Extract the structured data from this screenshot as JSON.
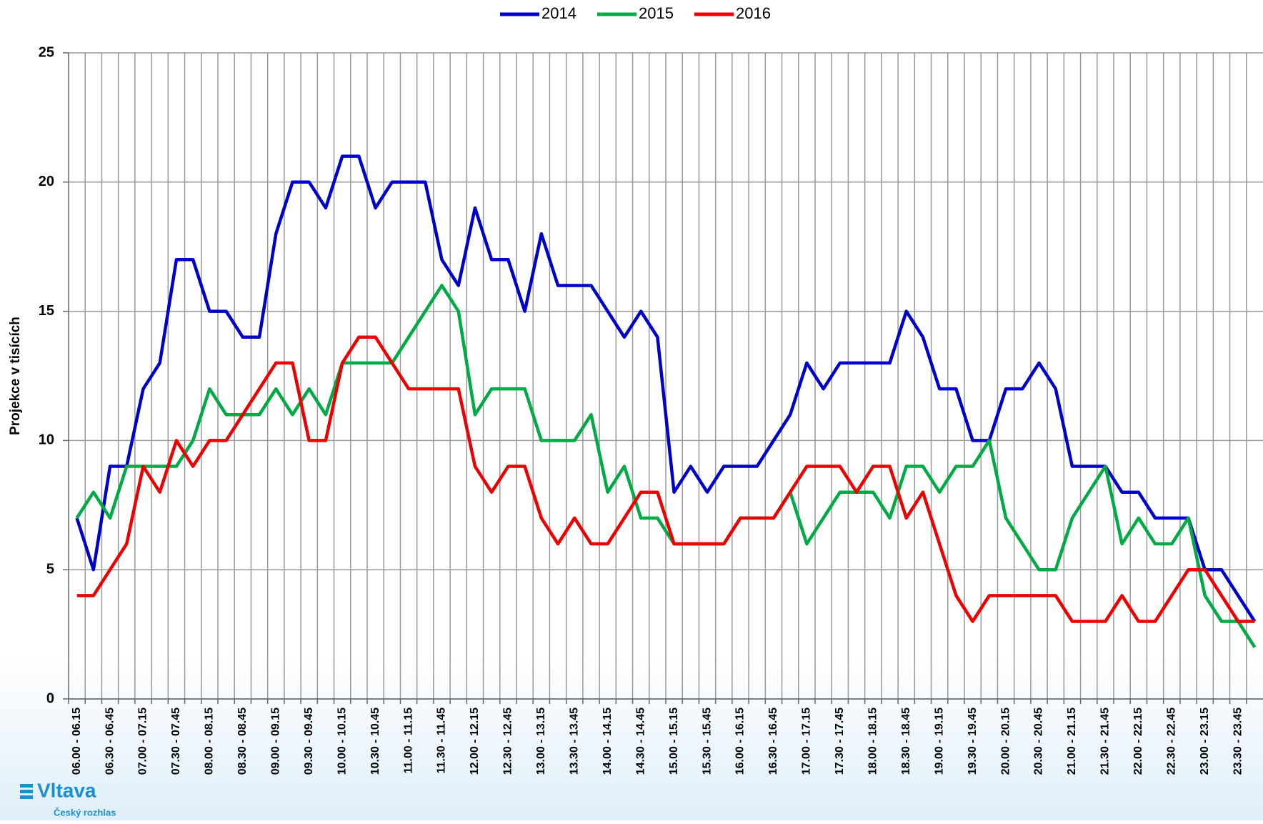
{
  "chart_data": {
    "type": "line",
    "y_label": "Projekce v tisících",
    "categories": [
      "06.00 - 06.15",
      null,
      "06.30 - 06.45",
      null,
      "07.00 - 07.15",
      null,
      "07.30 - 07.45",
      null,
      "08.00 - 08.15",
      null,
      "08.30 - 08.45",
      null,
      "09.00 - 09.15",
      null,
      "09.30 - 09.45",
      null,
      "10.00 - 10.15",
      null,
      "10.30 - 10.45",
      null,
      "11.00 - 11.15",
      null,
      "11.30 - 11.45",
      null,
      "12.00 - 12.15",
      null,
      "12.30 - 12.45",
      null,
      "13.00 - 13.15",
      null,
      "13.30 - 13.45",
      null,
      "14.00 - 14.15",
      null,
      "14.30 - 14.45",
      null,
      "15.00 - 15.15",
      null,
      "15.30 - 15.45",
      null,
      "16.00 - 16.15",
      null,
      "16.30 - 16.45",
      null,
      "17.00 - 17.15",
      null,
      "17.30 - 17.45",
      null,
      "18.00 - 18.15",
      null,
      "18.30 - 18.45",
      null,
      "19.00 - 19.15",
      null,
      "19.30 - 19.45",
      null,
      "20.00 - 20.15",
      null,
      "20.30 - 20.45",
      null,
      "21.00 - 21.15",
      null,
      "21.30 - 21.45",
      null,
      "22.00 - 22.15",
      null,
      "22.30 - 22.45",
      null,
      "23.00 - 23.15",
      null,
      "23.30 - 23.45",
      null
    ],
    "series": [
      {
        "name": "2014",
        "color": "#0000cc",
        "values": [
          7,
          5,
          9,
          9,
          12,
          13,
          17,
          17,
          15,
          15,
          14,
          14,
          18,
          20,
          20,
          19,
          21,
          21,
          19,
          20,
          20,
          20,
          17,
          16,
          19,
          17,
          17,
          15,
          18,
          16,
          16,
          16,
          15,
          14,
          15,
          14,
          8,
          9,
          8,
          9,
          9,
          9,
          10,
          11,
          13,
          12,
          13,
          13,
          13,
          13,
          15,
          14,
          12,
          12,
          10,
          10,
          12,
          12,
          13,
          12,
          9,
          9,
          9,
          8,
          8,
          7,
          7,
          7,
          5,
          5,
          4,
          3
        ]
      },
      {
        "name": "2015",
        "color": "#00aa44",
        "values": [
          7,
          8,
          7,
          9,
          9,
          9,
          9,
          10,
          12,
          11,
          11,
          11,
          12,
          11,
          12,
          11,
          13,
          13,
          13,
          13,
          14,
          15,
          16,
          15,
          11,
          12,
          12,
          12,
          10,
          10,
          10,
          11,
          8,
          9,
          7,
          7,
          6,
          6,
          6,
          6,
          7,
          7,
          7,
          8,
          6,
          7,
          8,
          8,
          8,
          7,
          9,
          9,
          8,
          9,
          9,
          10,
          7,
          6,
          5,
          5,
          7,
          8,
          9,
          6,
          7,
          6,
          6,
          7,
          4,
          3,
          3,
          2
        ]
      },
      {
        "name": "2016",
        "color": "#ee0000",
        "values": [
          4,
          4,
          5,
          6,
          9,
          8,
          10,
          9,
          10,
          10,
          11,
          12,
          13,
          13,
          10,
          10,
          13,
          14,
          14,
          13,
          12,
          12,
          12,
          12,
          9,
          8,
          9,
          9,
          7,
          6,
          7,
          6,
          6,
          7,
          8,
          8,
          6,
          6,
          6,
          6,
          7,
          7,
          7,
          8,
          9,
          9,
          9,
          8,
          9,
          9,
          7,
          8,
          6,
          4,
          3,
          4,
          4,
          4,
          4,
          4,
          3,
          3,
          3,
          4,
          3,
          3,
          4,
          5,
          5,
          4,
          3,
          3
        ]
      }
    ],
    "ylim": [
      0,
      25
    ],
    "yticks": [
      0,
      5,
      10,
      15,
      20,
      25
    ],
    "grid": true,
    "legend": "top"
  },
  "logo": {
    "name": "Vltava",
    "subtitle": "Český rozhlas"
  }
}
